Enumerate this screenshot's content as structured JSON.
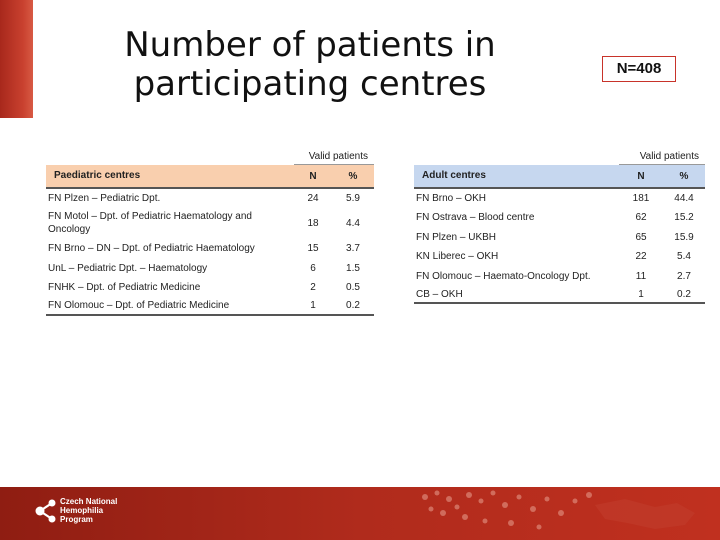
{
  "title_line1": "Number of patients in",
  "title_line2": "participating centres",
  "n_total": "N=408",
  "paediatric": {
    "valid_label": "Valid patients",
    "header": {
      "name": "Paediatric centres",
      "n": "N",
      "pct": "%"
    },
    "rows": [
      {
        "name": "FN Plzen – Pediatric Dpt.",
        "n": "24",
        "pct": "5.9"
      },
      {
        "name": "FN Motol – Dpt. of Pediatric Haematology and Oncology",
        "n": "18",
        "pct": "4.4"
      },
      {
        "name": "FN Brno – DN – Dpt. of Pediatric Haematology",
        "n": "15",
        "pct": "3.7"
      },
      {
        "name": "UnL – Pediatric Dpt. – Haematology",
        "n": "6",
        "pct": "1.5"
      },
      {
        "name": "FNHK – Dpt. of Pediatric Medicine",
        "n": "2",
        "pct": "0.5"
      },
      {
        "name": "FN Olomouc – Dpt. of Pediatric Medicine",
        "n": "1",
        "pct": "0.2"
      }
    ]
  },
  "adult": {
    "valid_label": "Valid patients",
    "header": {
      "name": "Adult centres",
      "n": "N",
      "pct": "%"
    },
    "rows": [
      {
        "name": "FN Brno – OKH",
        "n": "181",
        "pct": "44.4"
      },
      {
        "name": "FN Ostrava – Blood centre",
        "n": "62",
        "pct": "15.2"
      },
      {
        "name": "FN Plzen – UKBH",
        "n": "65",
        "pct": "15.9"
      },
      {
        "name": "KN Liberec – OKH",
        "n": "22",
        "pct": "5.4"
      },
      {
        "name": "FN Olomouc – Haemato-Oncology Dpt.",
        "n": "11",
        "pct": "2.7"
      },
      {
        "name": "CB – OKH",
        "n": "1",
        "pct": "0.2"
      }
    ]
  },
  "footer": {
    "logo_line1": "Czech National",
    "logo_line2": "Hemophilia",
    "logo_line3": "Program",
    "accent_color": "#b02b1c"
  }
}
